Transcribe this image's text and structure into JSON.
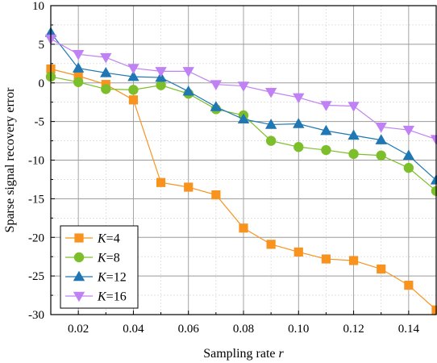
{
  "chart_data": {
    "type": "line",
    "xlabel": "Sampling rate r",
    "ylabel": "Sparse signal recovery error",
    "xlim": [
      0.01,
      0.15
    ],
    "ylim": [
      -30,
      10
    ],
    "x_ticks": [
      0.02,
      0.04,
      0.06,
      0.08,
      0.1,
      0.12,
      0.14
    ],
    "x_tick_labels": [
      "0.02",
      "0.04",
      "0.06",
      "0.08",
      "0.10",
      "0.12",
      "0.14"
    ],
    "y_ticks": [
      10,
      5,
      0,
      -5,
      -10,
      -15,
      -20,
      -25,
      -30
    ],
    "y_tick_labels": [
      "10",
      "5",
      "0",
      "-5",
      "-10",
      "-15",
      "-20",
      "-25",
      "-30"
    ],
    "grid": true,
    "legend_position": "bottom-left",
    "x": [
      0.01,
      0.02,
      0.03,
      0.04,
      0.05,
      0.06,
      0.07,
      0.08,
      0.09,
      0.1,
      0.11,
      0.12,
      0.13,
      0.14,
      0.15
    ],
    "series": [
      {
        "name": "K=4",
        "color": "#f7931e",
        "marker": "square",
        "values": [
          1.8,
          0.9,
          -0.2,
          -2.2,
          -12.9,
          -13.5,
          -14.5,
          -18.8,
          -20.9,
          -21.9,
          -22.8,
          -23.0,
          -24.1,
          -26.2,
          -29.4
        ]
      },
      {
        "name": "K=8",
        "color": "#7cbf2a",
        "marker": "circle",
        "values": [
          0.8,
          0.1,
          -0.8,
          -0.9,
          -0.3,
          -1.4,
          -3.4,
          -4.2,
          -7.5,
          -8.3,
          -8.7,
          -9.2,
          -9.4,
          -11.0,
          -14.0
        ]
      },
      {
        "name": "K=12",
        "color": "#1f77b4",
        "marker": "triangle-up",
        "values": [
          6.5,
          1.9,
          1.3,
          0.8,
          0.7,
          -1.1,
          -3.1,
          -4.7,
          -5.4,
          -5.3,
          -6.2,
          -6.8,
          -7.4,
          -9.4,
          -12.6
        ]
      },
      {
        "name": "K=16",
        "color": "#c081f5",
        "marker": "triangle-down",
        "values": [
          5.7,
          3.7,
          3.3,
          1.9,
          1.5,
          1.5,
          -0.2,
          -0.4,
          -1.2,
          -1.9,
          -2.9,
          -3.0,
          -5.7,
          -6.1,
          -7.3
        ]
      }
    ]
  }
}
